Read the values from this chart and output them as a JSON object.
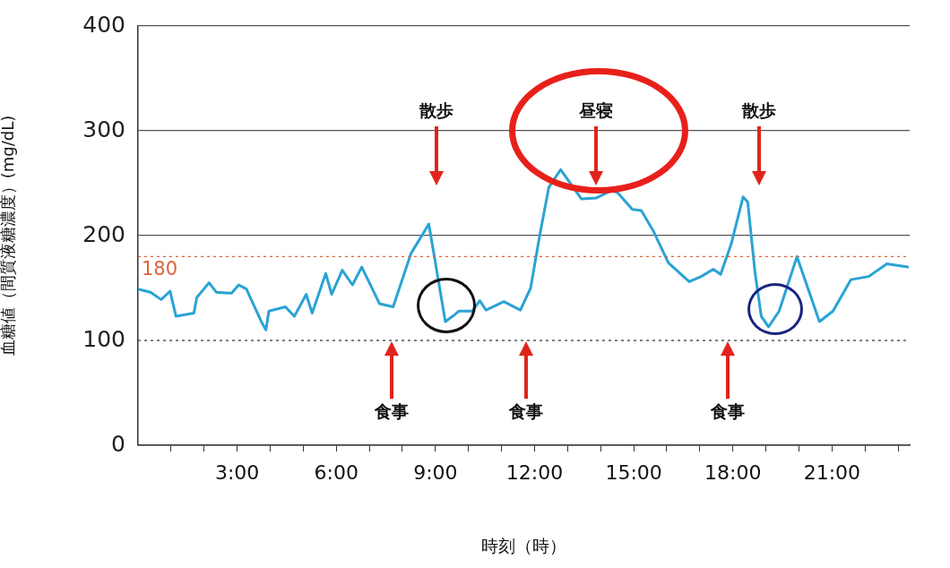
{
  "chart_data": {
    "type": "line",
    "xlabel": "時刻（時）",
    "ylabel": "血糖値（間質液糖濃度）(mg/dL)",
    "xlim": [
      0,
      23.35
    ],
    "xticks": [
      {
        "value": 1,
        "label": null
      },
      {
        "value": 2,
        "label": null
      },
      {
        "value": 3,
        "label": "3:00"
      },
      {
        "value": 4,
        "label": null
      },
      {
        "value": 5,
        "label": null
      },
      {
        "value": 6,
        "label": "6:00"
      },
      {
        "value": 7,
        "label": null
      },
      {
        "value": 8,
        "label": null
      },
      {
        "value": 9,
        "label": "9:00"
      },
      {
        "value": 10,
        "label": null
      },
      {
        "value": 11,
        "label": null
      },
      {
        "value": 12,
        "label": "12:00"
      },
      {
        "value": 13,
        "label": null
      },
      {
        "value": 14,
        "label": null
      },
      {
        "value": 15,
        "label": "15:00"
      },
      {
        "value": 16,
        "label": null
      },
      {
        "value": 17,
        "label": null
      },
      {
        "value": 18,
        "label": "18:00"
      },
      {
        "value": 19,
        "label": null
      },
      {
        "value": 20,
        "label": null
      },
      {
        "value": 21,
        "label": "21:00"
      },
      {
        "value": 22,
        "label": null
      },
      {
        "value": 23,
        "label": null
      }
    ],
    "ylim": [
      0,
      400
    ],
    "yticks": [
      0,
      100,
      200,
      300,
      400
    ],
    "grid": "y",
    "legend": false,
    "marker": "none",
    "line_style": "solid",
    "x": [
      0,
      0.38,
      0.7,
      0.97,
      1.15,
      1.69,
      1.78,
      2.15,
      2.37,
      2.83,
      3.05,
      3.28,
      3.73,
      3.87,
      3.96,
      4.46,
      4.73,
      5.09,
      5.27,
      5.68,
      5.86,
      6.18,
      6.49,
      6.77,
      7.31,
      7.72,
      8.26,
      8.8,
      9.3,
      9.52,
      9.71,
      10.12,
      10.34,
      10.53,
      11.07,
      11.57,
      11.88,
      12.16,
      12.43,
      12.79,
      13.42,
      13.87,
      14.33,
      14.51,
      14.96,
      15.23,
      15.6,
      16.05,
      16.68,
      17.04,
      17.41,
      17.63,
      17.95,
      18.31,
      18.45,
      18.67,
      18.86,
      19.08,
      19.4,
      19.94,
      20.62,
      21.03,
      21.57,
      22.11,
      22.66,
      23.29
    ],
    "series": [
      {
        "color": "#2aa3d4",
        "values": [
          149,
          146,
          139,
          147,
          123,
          126,
          141,
          155,
          146,
          145,
          153,
          149,
          118,
          110,
          128,
          132,
          123,
          144,
          126,
          164,
          144,
          167,
          153,
          170,
          135,
          132,
          183,
          211,
          118,
          123,
          128,
          128,
          138,
          129,
          137,
          129,
          150,
          201,
          246,
          263,
          235,
          236,
          243,
          241,
          225,
          224,
          204,
          174,
          156,
          161,
          168,
          163,
          192,
          237,
          232,
          165,
          123,
          113,
          128,
          180,
          118,
          128,
          158,
          161,
          173,
          170
        ]
      }
    ],
    "ref_lines": [
      {
        "axis": "y",
        "value": 180,
        "label": "180",
        "color": "#d9653a",
        "line_style": "dotted"
      },
      {
        "axis": "y",
        "value": 100,
        "label": null,
        "color": "#555555",
        "line_style": "dotted"
      }
    ],
    "annotations": [
      "散歩",
      "昼寝",
      "散歩",
      "食事",
      "食事",
      "食事"
    ]
  }
}
